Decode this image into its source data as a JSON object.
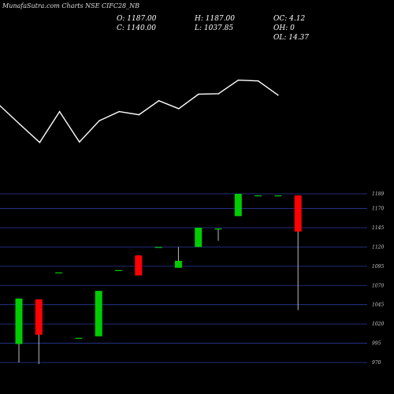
{
  "header": {
    "brand": "MunafaSutra.com",
    "title_suffix": " Charts NSE CIFC28_NB"
  },
  "stats": {
    "open": "O: 1187.00",
    "high": "H: 1187.00",
    "oc": "OC: 4.12",
    "close": "C: 1140.00",
    "low": "L: 1037.85",
    "oh": "OH: 0",
    "ol": "OL: 14.37"
  },
  "colors": {
    "background": "#000000",
    "bull": "#00cc00",
    "bear": "#ff0000",
    "grid": "#2a3a9a",
    "line": "#ffffff"
  },
  "chart_data": [
    {
      "type": "line",
      "x": [
        1,
        2,
        3,
        4,
        5,
        6,
        7,
        8,
        9,
        10,
        11,
        12,
        13,
        14,
        15
      ],
      "values": [
        1162,
        1085,
        1010,
        1138,
        1012,
        1100,
        1138,
        1125,
        1183,
        1150,
        1210,
        1212,
        1268,
        1265,
        1206
      ],
      "grid": false
    },
    {
      "type": "candlestick",
      "ylim": [
        970,
        1190
      ],
      "yticks": [
        "1189",
        "1170",
        "1145",
        "1120",
        "1095",
        "1070",
        "1045",
        "1020",
        "995",
        "970"
      ],
      "ytick_values": [
        1189,
        1170,
        1145,
        1120,
        1095,
        1070,
        1045,
        1020,
        995,
        970
      ],
      "grid": true,
      "candles": [
        {
          "open": 994,
          "close": 1053,
          "high": 1053,
          "low": 970
        },
        {
          "open": 1052,
          "close": 1006,
          "high": 1052,
          "low": 968
        },
        {
          "open": 1087,
          "close": 1087,
          "high": 1087,
          "low": 1087
        },
        {
          "open": 1002,
          "close": 1002,
          "high": 1002,
          "low": 1002
        },
        {
          "open": 1004,
          "close": 1063,
          "high": 1063,
          "low": 1004
        },
        {
          "open": 1090,
          "close": 1090,
          "high": 1090,
          "low": 1090
        },
        {
          "open": 1109,
          "close": 1083,
          "high": 1109,
          "low": 1083
        },
        {
          "open": 1120,
          "close": 1120,
          "high": 1120,
          "low": 1120
        },
        {
          "open": 1093,
          "close": 1102,
          "high": 1120,
          "low": 1093
        },
        {
          "open": 1120,
          "close": 1145,
          "high": 1145,
          "low": 1120
        },
        {
          "open": 1144,
          "close": 1144,
          "high": 1144,
          "low": 1128
        },
        {
          "open": 1160,
          "close": 1189,
          "high": 1189,
          "low": 1160
        },
        {
          "open": 1187,
          "close": 1187,
          "high": 1187,
          "low": 1187
        },
        {
          "open": 1187,
          "close": 1187,
          "high": 1187,
          "low": 1187
        },
        {
          "open": 1187,
          "close": 1140,
          "high": 1187,
          "low": 1038
        }
      ]
    }
  ]
}
